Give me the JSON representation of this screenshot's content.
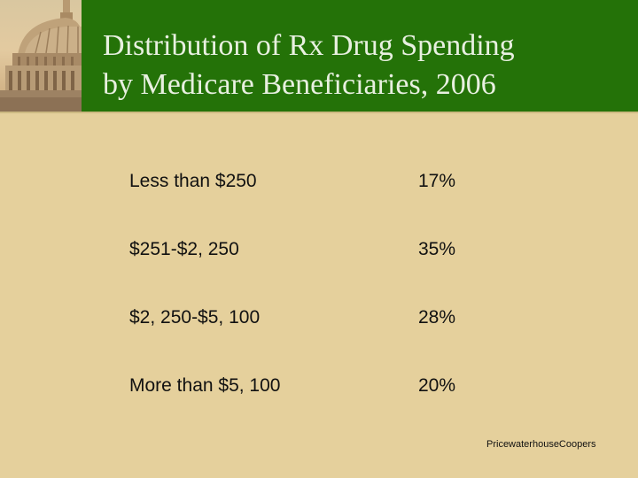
{
  "slide": {
    "title_line1": "Distribution of Rx Drug Spending",
    "title_line2": "by Medicare Beneficiaries, 2006"
  },
  "rows": [
    {
      "label": "Less than $250",
      "value": "17%"
    },
    {
      "label": "$251-$2, 250",
      "value": "35%"
    },
    {
      "label": "$2, 250-$5, 100",
      "value": "28%"
    },
    {
      "label": "More than $5, 100",
      "value": "20%"
    }
  ],
  "footer": {
    "source": "PricewaterhouseCoopers"
  },
  "colors": {
    "header": "#247208",
    "background": "#e5d09c",
    "title_text": "#e8f0e0"
  }
}
